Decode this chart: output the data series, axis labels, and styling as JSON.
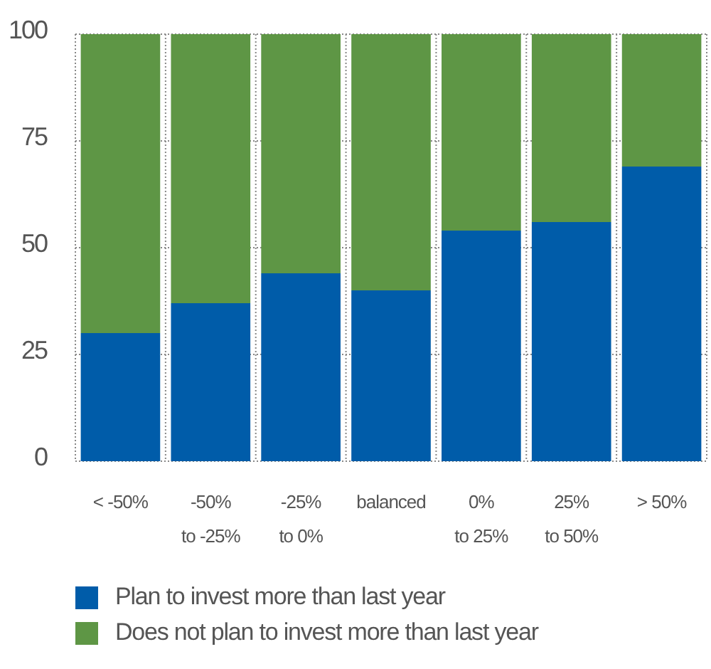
{
  "chart_data": {
    "type": "bar",
    "stacked": true,
    "categories": [
      "< -50%",
      "-50%\nto -25%",
      "-25%\nto 0%",
      "balanced",
      "0%\nto 25%",
      "25%\nto 50%",
      "> 50%"
    ],
    "series": [
      {
        "name": "Plan to invest more than last year",
        "color": "#005ca9",
        "values": [
          30,
          37,
          44,
          40,
          54,
          56,
          69
        ]
      },
      {
        "name": "Does not plan to invest more than last year",
        "color": "#5e9645",
        "values": [
          70,
          63,
          56,
          60,
          46,
          44,
          31
        ]
      }
    ],
    "ylim": [
      0,
      100
    ],
    "yticks": [
      0,
      25,
      50,
      75,
      100
    ],
    "grid": true,
    "legend": "bottom"
  }
}
